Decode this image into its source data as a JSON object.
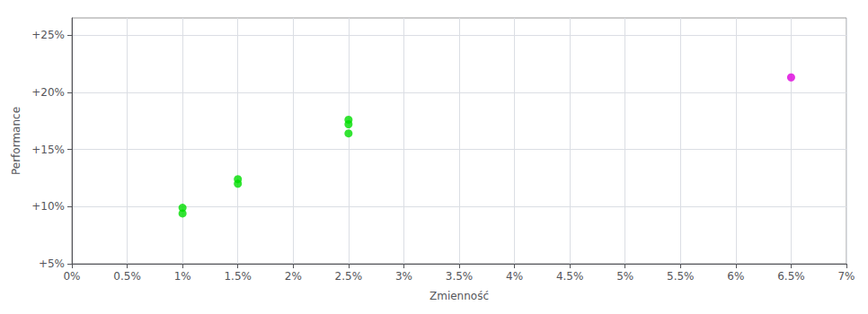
{
  "chart_data": {
    "type": "scatter",
    "xlabel": "Zmienność",
    "ylabel": "Performance",
    "xlim": [
      0.0,
      0.07
    ],
    "ylim": [
      0.05,
      0.265
    ],
    "xticks": [
      {
        "value": 0.0,
        "label": "0%"
      },
      {
        "value": 0.005,
        "label": "0.5%"
      },
      {
        "value": 0.01,
        "label": "1%"
      },
      {
        "value": 0.015,
        "label": "1.5%"
      },
      {
        "value": 0.02,
        "label": "2%"
      },
      {
        "value": 0.025,
        "label": "2.5%"
      },
      {
        "value": 0.03,
        "label": "3%"
      },
      {
        "value": 0.035,
        "label": "3.5%"
      },
      {
        "value": 0.04,
        "label": "4%"
      },
      {
        "value": 0.045,
        "label": "4.5%"
      },
      {
        "value": 0.05,
        "label": "5%"
      },
      {
        "value": 0.055,
        "label": "5.5%"
      },
      {
        "value": 0.06,
        "label": "6%"
      },
      {
        "value": 0.065,
        "label": "6.5%"
      },
      {
        "value": 0.07,
        "label": "7%"
      }
    ],
    "yticks": [
      {
        "value": 0.05,
        "label": "+5%"
      },
      {
        "value": 0.1,
        "label": "+10%"
      },
      {
        "value": 0.15,
        "label": "+15%"
      },
      {
        "value": 0.2,
        "label": "+20%"
      },
      {
        "value": 0.25,
        "label": "+25%"
      }
    ],
    "grid": true,
    "series": [
      {
        "color": "#00dd00",
        "x": [
          0.01,
          0.01,
          0.015,
          0.015,
          0.025,
          0.025,
          0.025
        ],
        "values": [
          0.099,
          0.094,
          0.124,
          0.12,
          0.176,
          0.172,
          0.164
        ]
      },
      {
        "color": "#dd00dd",
        "x": [
          0.065
        ],
        "values": [
          0.213
        ]
      }
    ]
  }
}
